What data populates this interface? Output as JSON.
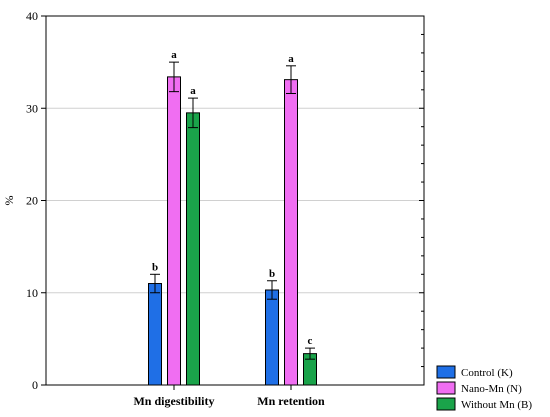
{
  "chart_data": {
    "type": "bar",
    "title": "",
    "xlabel": "",
    "ylabel": "%",
    "ylim": [
      0,
      40
    ],
    "yticks": [
      0,
      10,
      20,
      30,
      40
    ],
    "grid": true,
    "legend_position": "bottom-right",
    "categories": [
      "Mn digestibility",
      "Mn retention"
    ],
    "series": [
      {
        "name": "Control (K)",
        "color": "#1f6fe6",
        "values": [
          11.0,
          10.3
        ],
        "errors": [
          1.0,
          1.0
        ],
        "significance": [
          "b",
          "b"
        ]
      },
      {
        "name": "Nano-Mn (N)",
        "color": "#f06ef2",
        "values": [
          33.4,
          33.1
        ],
        "errors": [
          1.6,
          1.5
        ],
        "significance": [
          "a",
          "a"
        ]
      },
      {
        "name": "Without Mn (B)",
        "color": "#1aa34a",
        "values": [
          29.5,
          3.4
        ],
        "errors": [
          1.6,
          0.6
        ],
        "significance": [
          "a",
          "c"
        ]
      }
    ]
  }
}
